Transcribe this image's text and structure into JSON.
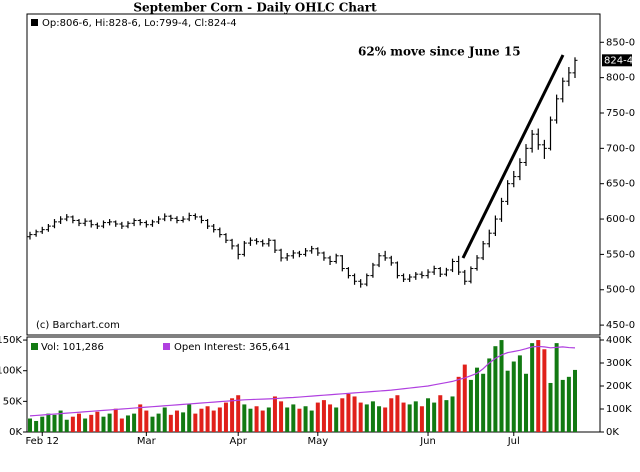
{
  "chart_data": [
    {
      "type": "ohlc",
      "title": "September Corn - Daily OHLC Chart",
      "header": "Op:806-6, Hi:828-6, Lo:799-4, Cl:824-4",
      "annotation": "62% move since June 15",
      "credit": "(c) Barchart.com",
      "color": "#000000",
      "categories": [
        null,
        null,
        "Feb 12",
        null,
        null,
        null,
        null,
        null,
        null,
        null,
        null,
        null,
        null,
        null,
        null,
        null,
        null,
        null,
        null,
        "Mar",
        null,
        null,
        null,
        null,
        null,
        null,
        null,
        null,
        null,
        null,
        null,
        null,
        null,
        null,
        "Apr",
        null,
        null,
        null,
        null,
        null,
        null,
        null,
        null,
        null,
        null,
        null,
        null,
        "May",
        null,
        null,
        null,
        null,
        null,
        null,
        null,
        null,
        null,
        null,
        null,
        null,
        null,
        null,
        null,
        null,
        null,
        "Jun",
        null,
        null,
        null,
        null,
        null,
        null,
        null,
        null,
        null,
        null,
        null,
        null,
        null,
        "Jul",
        null,
        null,
        null,
        null,
        null,
        null,
        null,
        null,
        null,
        null
      ],
      "open": [
        575,
        578,
        582,
        585,
        590,
        596,
        600,
        603,
        598,
        594,
        597,
        592,
        590,
        595,
        596,
        593,
        590,
        594,
        598,
        595,
        592,
        596,
        600,
        604,
        601,
        598,
        600,
        605,
        603,
        598,
        590,
        585,
        578,
        570,
        562,
        550,
        566,
        570,
        568,
        565,
        570,
        556,
        545,
        548,
        552,
        550,
        555,
        558,
        552,
        545,
        540,
        548,
        530,
        520,
        512,
        508,
        520,
        535,
        548,
        545,
        538,
        520,
        515,
        518,
        522,
        520,
        525,
        530,
        522,
        528,
        540,
        525,
        512,
        530,
        545,
        565,
        580,
        600,
        625,
        650,
        660,
        680,
        700,
        720,
        705,
        700,
        740,
        770,
        795,
        806.75
      ],
      "high": [
        582,
        585,
        589,
        593,
        600,
        604,
        607,
        605,
        600,
        601,
        599,
        595,
        598,
        600,
        598,
        596,
        597,
        601,
        600,
        598,
        599,
        604,
        608,
        606,
        604,
        604,
        609,
        608,
        605,
        600,
        593,
        588,
        580,
        572,
        565,
        569,
        574,
        573,
        571,
        573,
        571,
        558,
        552,
        556,
        555,
        559,
        562,
        560,
        554,
        548,
        551,
        549,
        532,
        523,
        515,
        523,
        538,
        552,
        555,
        548,
        540,
        523,
        522,
        525,
        526,
        529,
        534,
        532,
        531,
        544,
        548,
        528,
        533,
        549,
        569,
        585,
        605,
        630,
        655,
        668,
        686,
        706,
        726,
        728,
        712,
        745,
        776,
        800,
        815,
        828.75
      ],
      "low": [
        571,
        575,
        579,
        582,
        587,
        593,
        597,
        594,
        590,
        590,
        588,
        586,
        587,
        591,
        589,
        586,
        587,
        590,
        591,
        588,
        589,
        593,
        597,
        597,
        594,
        595,
        597,
        599,
        594,
        586,
        581,
        574,
        566,
        557,
        543,
        547,
        562,
        564,
        561,
        561,
        552,
        540,
        541,
        544,
        546,
        547,
        551,
        548,
        541,
        535,
        537,
        526,
        516,
        507,
        503,
        505,
        517,
        532,
        541,
        534,
        516,
        511,
        511,
        514,
        516,
        516,
        521,
        518,
        519,
        525,
        521,
        507,
        509,
        527,
        542,
        560,
        576,
        596,
        620,
        645,
        655,
        675,
        694,
        698,
        685,
        697,
        735,
        765,
        788,
        799.5
      ],
      "close": [
        578,
        582,
        585,
        590,
        596,
        600,
        603,
        598,
        594,
        597,
        592,
        590,
        595,
        596,
        593,
        590,
        594,
        598,
        595,
        592,
        596,
        600,
        604,
        601,
        598,
        600,
        605,
        603,
        598,
        590,
        585,
        578,
        570,
        562,
        550,
        566,
        570,
        568,
        565,
        570,
        556,
        545,
        548,
        552,
        550,
        555,
        558,
        552,
        545,
        540,
        548,
        530,
        520,
        512,
        508,
        520,
        535,
        548,
        545,
        538,
        520,
        515,
        518,
        522,
        520,
        525,
        530,
        522,
        528,
        540,
        525,
        512,
        530,
        545,
        565,
        580,
        600,
        625,
        650,
        660,
        680,
        700,
        720,
        705,
        700,
        740,
        770,
        795,
        806.75,
        824.5
      ],
      "price_marker": {
        "value": 824.5,
        "label": "824-4"
      },
      "ylim": [
        436,
        890
      ],
      "yticks": [
        {
          "value": 450,
          "label": "450-0"
        },
        {
          "value": 500,
          "label": "500-0"
        },
        {
          "value": 550,
          "label": "550-0"
        },
        {
          "value": 600,
          "label": "600-0"
        },
        {
          "value": 650,
          "label": "650-0"
        },
        {
          "value": 700,
          "label": "700-0"
        },
        {
          "value": 750,
          "label": "750-0"
        },
        {
          "value": 800,
          "label": "800-0"
        },
        {
          "value": 850,
          "label": "850-0"
        }
      ]
    },
    {
      "type": "volume",
      "series": [
        {
          "name": "Vol: 101,286",
          "color": "#127a12",
          "down_color": "#e0201a",
          "values": [
            22,
            18,
            25,
            30,
            28,
            35,
            20,
            25,
            30,
            22,
            28,
            33,
            25,
            30,
            38,
            22,
            27,
            30,
            45,
            35,
            25,
            30,
            40,
            28,
            35,
            32,
            45,
            30,
            38,
            42,
            35,
            40,
            48,
            55,
            60,
            45,
            38,
            42,
            35,
            40,
            58,
            50,
            40,
            45,
            38,
            42,
            35,
            48,
            52,
            45,
            40,
            55,
            62,
            58,
            48,
            45,
            50,
            42,
            40,
            55,
            60,
            48,
            45,
            50,
            42,
            55,
            48,
            60,
            52,
            58,
            90,
            110,
            85,
            105,
            95,
            120,
            140,
            150,
            100,
            115,
            125,
            95,
            145,
            150,
            135,
            80,
            145,
            85,
            90,
            101.286
          ]
        },
        {
          "name": "Open Interest: 365,641",
          "color": "#b040e0",
          "axis": "y2",
          "values": [
            70,
            72,
            74,
            76,
            78,
            80,
            82,
            84,
            86,
            88,
            90,
            92,
            94,
            96,
            98,
            100,
            102,
            104,
            106,
            108,
            110,
            112,
            114,
            116,
            118,
            120,
            122,
            124,
            126,
            128,
            130,
            132,
            134,
            136,
            138,
            140,
            141,
            142,
            143,
            144,
            145,
            147,
            149,
            150,
            152,
            154,
            156,
            158,
            160,
            162,
            164,
            166,
            168,
            170,
            172,
            174,
            176,
            178,
            180,
            182,
            185,
            188,
            191,
            194,
            197,
            200,
            205,
            210,
            215,
            220,
            228,
            235,
            245,
            255,
            275,
            300,
            320,
            335,
            345,
            350,
            355,
            362,
            370,
            372,
            370,
            366,
            368,
            370,
            367,
            365.641
          ]
        }
      ],
      "ylim": [
        0,
        155
      ],
      "yticks": [
        {
          "value": 0,
          "label": "0K"
        },
        {
          "value": 50,
          "label": "50K"
        },
        {
          "value": 100,
          "label": "100K"
        },
        {
          "value": 150,
          "label": "150K"
        }
      ],
      "y2lim": [
        0,
        413
      ],
      "y2ticks": [
        {
          "value": 0,
          "label": "0K"
        },
        {
          "value": 100,
          "label": "100K"
        },
        {
          "value": 200,
          "label": "200K"
        },
        {
          "value": 300,
          "label": "300K"
        },
        {
          "value": 400,
          "label": "400K"
        }
      ]
    }
  ]
}
